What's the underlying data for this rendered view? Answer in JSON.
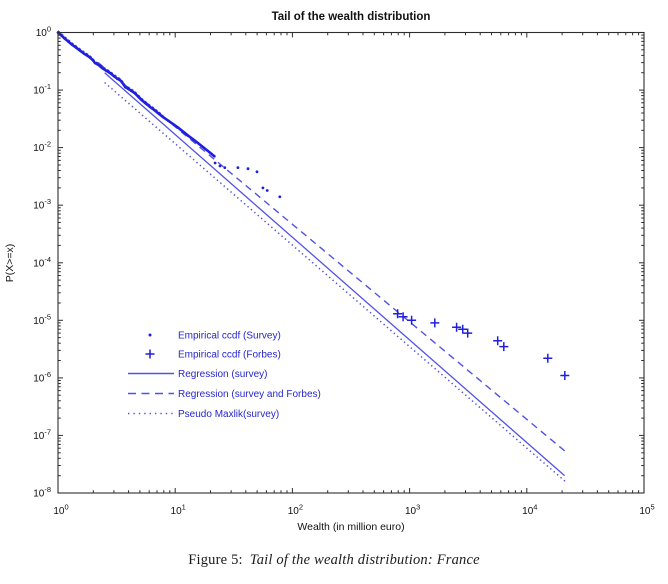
{
  "page": {
    "background": "#ffffff"
  },
  "chart_data": {
    "type": "scatter",
    "scale": "log-log",
    "title": "Tail of the wealth distribution",
    "xlabel": "Wealth (in million euro)",
    "ylabel": "P(X>=x)",
    "x_tick_exponents": [
      0,
      1,
      2,
      3,
      4,
      5
    ],
    "y_tick_exponents": [
      0,
      -1,
      -2,
      -3,
      -4,
      -5,
      -6,
      -7,
      -8
    ],
    "xlim": [
      1,
      100000
    ],
    "ylim": [
      1e-08,
      1
    ],
    "grid": false,
    "legend": {
      "location": "inside-middle-left",
      "border": false
    },
    "colors": {
      "data_blue": "#1f1fdd",
      "line_blue": "#5353e3",
      "legend_text": "#2626c9",
      "axis": "#2e2e2e",
      "text": "#111111"
    },
    "series": [
      {
        "id": "survey_ccdf",
        "label": "Empirical ccdf (Survey)",
        "type": "scatter",
        "marker": "dot",
        "band_points": [
          [
            1.0,
            1.0
          ],
          [
            1.06,
            0.9
          ],
          [
            1.13,
            0.8
          ],
          [
            1.22,
            0.7
          ],
          [
            1.32,
            0.615
          ],
          [
            1.43,
            0.545
          ],
          [
            1.55,
            0.48
          ],
          [
            1.68,
            0.425
          ],
          [
            1.82,
            0.385
          ],
          [
            1.97,
            0.335
          ],
          [
            2.07,
            0.295
          ],
          [
            2.22,
            0.272
          ],
          [
            2.4,
            0.238
          ],
          [
            2.58,
            0.218
          ],
          [
            2.78,
            0.198
          ],
          [
            3.0,
            0.175
          ],
          [
            3.2,
            0.158
          ],
          [
            3.42,
            0.146
          ],
          [
            3.6,
            0.128
          ],
          [
            3.75,
            0.112
          ],
          [
            3.95,
            0.106
          ],
          [
            4.2,
            0.098
          ],
          [
            4.5,
            0.089
          ],
          [
            4.85,
            0.0765
          ],
          [
            5.2,
            0.0665
          ],
          [
            5.6,
            0.0585
          ],
          [
            6.1,
            0.051
          ],
          [
            6.65,
            0.0448
          ],
          [
            7.2,
            0.0392
          ],
          [
            7.9,
            0.0338
          ],
          [
            8.7,
            0.0295
          ],
          [
            9.6,
            0.0256
          ],
          [
            10.6,
            0.0222
          ],
          [
            11.7,
            0.0189
          ],
          [
            12.9,
            0.0161
          ],
          [
            14.3,
            0.0138
          ],
          [
            15.9,
            0.0117
          ],
          [
            17.6,
            0.0099
          ],
          [
            19.5,
            0.0084
          ],
          [
            21.6,
            0.0071
          ]
        ],
        "tail_points": [
          [
            21.9,
            0.0054
          ],
          [
            24.1,
            0.0048
          ],
          [
            26.5,
            0.0045
          ],
          [
            34.3,
            0.0045
          ],
          [
            41.8,
            0.0043
          ],
          [
            49.9,
            0.0038
          ],
          [
            56,
            0.002
          ],
          [
            61,
            0.0018
          ],
          [
            78,
            0.0014
          ]
        ]
      },
      {
        "id": "forbes_ccdf",
        "label": "Empirical ccdf (Forbes)",
        "type": "scatter",
        "marker": "plus",
        "points": [
          [
            790,
            1.3e-05
          ],
          [
            880,
            1.15e-05
          ],
          [
            1040,
            1e-05
          ],
          [
            1640,
            9e-06
          ],
          [
            2520,
            7.6e-06
          ],
          [
            2840,
            7e-06
          ],
          [
            3130,
            6e-06
          ],
          [
            5650,
            4.4e-06
          ],
          [
            6360,
            3.5e-06
          ],
          [
            15100,
            2.2e-06
          ],
          [
            21100,
            1.1e-06
          ]
        ]
      },
      {
        "id": "regression_survey",
        "label": "Regression (survey)",
        "type": "line",
        "style": "solid",
        "from": [
          2.5,
          0.2
        ],
        "to": [
          21000,
          2e-08
        ]
      },
      {
        "id": "regression_survey_forbes",
        "label": "Regression (survey and Forbes)",
        "type": "line",
        "style": "dashed",
        "from": [
          2.2,
          0.3
        ],
        "to": [
          21500,
          5.2e-08
        ]
      },
      {
        "id": "pseudo_maxlik",
        "label": "Pseudo Maxlik(survey)",
        "type": "line",
        "style": "dotted",
        "from": [
          2.5,
          0.135
        ],
        "to": [
          22000,
          1.5e-08
        ]
      }
    ]
  },
  "caption": {
    "prefix": "Figure 5:",
    "text": "Tail of the wealth distribution: France"
  }
}
